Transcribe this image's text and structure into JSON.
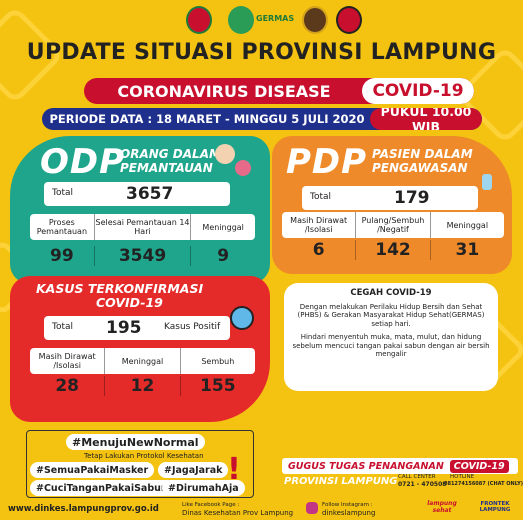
{
  "header": {
    "logo_text": "GERMAS",
    "title": "UPDATE SITUASI PROVINSI LAMPUNG",
    "banner_left": "CORONAVIRUS DISEASE",
    "banner_right": "COVID-19",
    "period": "PERIODE DATA : 18 MARET - MINGGU 5 JULI 2020",
    "time": "PUKUL 10.00 WIB"
  },
  "odp": {
    "abbr": "ODP",
    "full_1": "ORANG DALAM",
    "full_2": "PEMANTAUAN",
    "total_label": "Total",
    "total": "3657",
    "cols": [
      "Proses Pemantauan",
      "Selesai Pemantauan 14 Hari",
      "Meninggal"
    ],
    "values": [
      "99",
      "3549",
      "9"
    ]
  },
  "pdp": {
    "abbr": "PDP",
    "full_1": "PASIEN DALAM",
    "full_2": "PENGAWASAN",
    "total_label": "Total",
    "total": "179",
    "cols": [
      "Masih Dirawat /Isolasi",
      "Pulang/Sembuh /Negatif",
      "Meninggal"
    ],
    "values": [
      "6",
      "142",
      "31"
    ]
  },
  "kasus": {
    "title_1": "KASUS TERKONFIRMASI",
    "title_2": "COVID-19",
    "total_label": "Total",
    "total": "195",
    "positif_label": "Kasus Positif",
    "cols": [
      "Masih Dirawat /Isolasi",
      "Meninggal",
      "Sembuh"
    ],
    "values": [
      "28",
      "12",
      "155"
    ]
  },
  "cegah": {
    "title": "CEGAH COVID-19",
    "p1": "Dengan melakukan Perilaku Hidup Bersih dan Sehat (PHBS) & Gerakan Masyarakat Hidup Sehat(GERMAS) setiap hari.",
    "p2": "Hindari menyentuh muka, mata, mulut, dan hidung sebelum mencuci tangan pakai sabun dengan air bersih mengalir"
  },
  "tags": {
    "main": "#MenujuNewNormal",
    "main_sub": "Tetap Lakukan Protokol Kesehatan",
    "t1": "#SemuaPakaiMasker",
    "t2": "#JagaJarak",
    "t3": "#CuciTanganPakaiSabun",
    "t4": "#DirumahAja"
  },
  "gugus": {
    "line1": "GUGUS TUGAS PENANGANAN",
    "line1b": "COVID-19",
    "line2": "PROVINSI LAMPUNG",
    "call_center": "CALL CENTER",
    "hotline": "HOTLINE",
    "phone1": "0721 - 470508",
    "phone2": "081274156087 (CHAT ONLY)"
  },
  "footer": {
    "website": "www.dinkes.lampungprov.go.id",
    "fb_label": "Like Facebook Page :",
    "fb": "Dinas Kesehatan Prov Lampung",
    "ig_label": "Follow Instagram :",
    "ig": "dinkeslampung",
    "logo2": "lampung sehat",
    "logo3": "FRONTEK LAMPUNG"
  }
}
